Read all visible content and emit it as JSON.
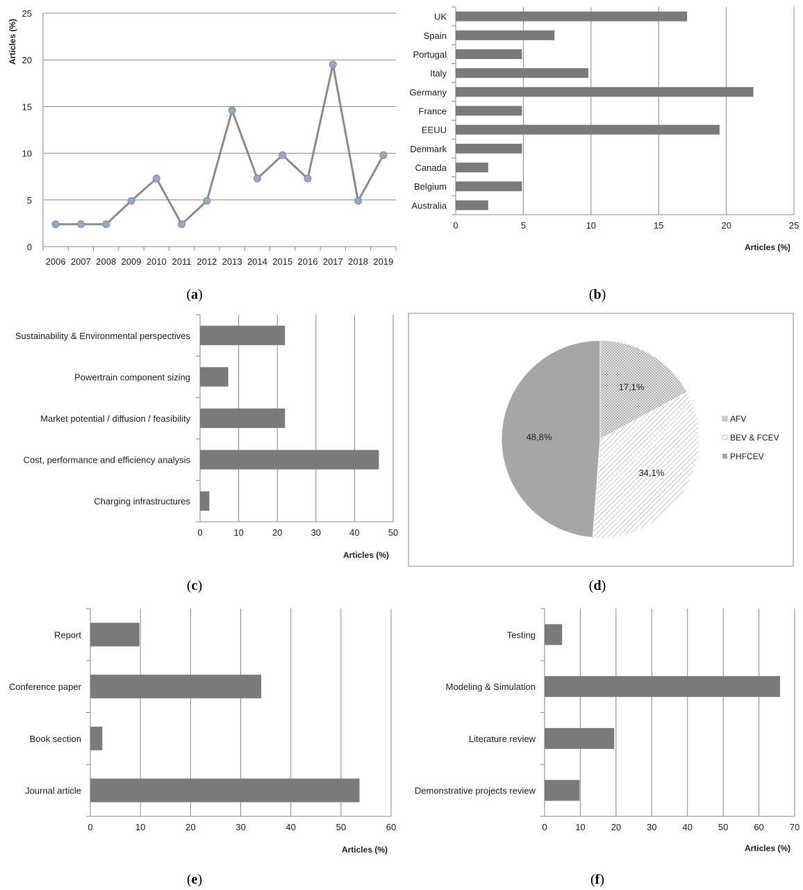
{
  "chart_data": [
    {
      "id": "a",
      "type": "line",
      "x": [
        "2006",
        "2007",
        "2008",
        "2009",
        "2010",
        "2011",
        "2012",
        "2013",
        "2014",
        "2015",
        "2016",
        "2017",
        "2018",
        "2019"
      ],
      "values": [
        2.4,
        2.4,
        2.4,
        4.9,
        7.3,
        2.4,
        4.9,
        14.6,
        7.3,
        9.8,
        7.3,
        19.5,
        4.9,
        9.8
      ],
      "ylabel": "Articles (%)",
      "ylim": [
        0,
        25
      ],
      "yticks": [
        "0",
        "5",
        "10",
        "15",
        "20",
        "25"
      ],
      "grid": "horizontal",
      "series_color": "#8c8c8c",
      "marker_color": "#94a9c4"
    },
    {
      "id": "b",
      "type": "bar",
      "orientation": "horizontal",
      "categories": [
        "UK",
        "Spain",
        "Portugal",
        "Italy",
        "Germany",
        "France",
        "EEUU",
        "Denmark",
        "Canada",
        "Belgium",
        "Australia"
      ],
      "values": [
        17.1,
        7.3,
        4.9,
        9.8,
        22.0,
        4.9,
        19.5,
        4.9,
        2.4,
        4.9,
        2.4
      ],
      "xlabel": "Articles (%)",
      "xlim": [
        0,
        25
      ],
      "xticks": [
        "0",
        "5",
        "10",
        "15",
        "20",
        "25"
      ],
      "grid": "vertical",
      "bar_color": "#7a7a7a"
    },
    {
      "id": "c",
      "type": "bar",
      "orientation": "horizontal",
      "categories": [
        "Sustainability & Environmental perspectives",
        "Powertrain component sizing",
        "Market potential / diffusion / feasibility",
        "Cost, performance and efficiency analysis",
        "Charging infrastructures"
      ],
      "values": [
        22.0,
        7.3,
        22.0,
        46.3,
        2.4
      ],
      "xlabel": "Articles (%)",
      "xlim": [
        0,
        50
      ],
      "xticks": [
        "0",
        "10",
        "20",
        "30",
        "40",
        "50"
      ],
      "grid": "vertical",
      "bar_color": "#7a7a7a"
    },
    {
      "id": "d",
      "type": "pie",
      "slices": [
        {
          "label": "AFV",
          "value": 17.1,
          "text": "17,1%",
          "color": "#c8c8c8",
          "pattern": "dots"
        },
        {
          "label": "BEV & FCEV",
          "value": 34.1,
          "text": "34,1%",
          "color": "#ffffff",
          "pattern": "hatch"
        },
        {
          "label": "PHFCEV",
          "value": 48.8,
          "text": "48,8%",
          "color": "#a6a6a6",
          "pattern": "solid"
        }
      ],
      "legend": "right"
    },
    {
      "id": "e",
      "type": "bar",
      "orientation": "horizontal",
      "categories": [
        "Report",
        "Conference paper",
        "Book section",
        "Journal article"
      ],
      "values": [
        9.8,
        34.1,
        2.4,
        53.7
      ],
      "xlabel": "Articles (%)",
      "xlim": [
        0,
        60
      ],
      "xticks": [
        "0",
        "10",
        "20",
        "30",
        "40",
        "50",
        "60"
      ],
      "grid": "vertical",
      "bar_color": "#7a7a7a"
    },
    {
      "id": "f",
      "type": "bar",
      "orientation": "horizontal",
      "categories": [
        "Testing",
        "Modeling & Simulation",
        "Literature review",
        "Demonstrative projects review"
      ],
      "values": [
        4.9,
        65.9,
        19.5,
        9.8
      ],
      "xlabel": "Articles (%)",
      "xlim": [
        0,
        70
      ],
      "xticks": [
        "0",
        "10",
        "20",
        "30",
        "40",
        "50",
        "60",
        "70"
      ],
      "grid": "vertical",
      "bar_color": "#7a7a7a"
    }
  ],
  "captions": {
    "a": "a",
    "b": "b",
    "c": "c",
    "d": "d",
    "e": "e",
    "f": "f"
  }
}
